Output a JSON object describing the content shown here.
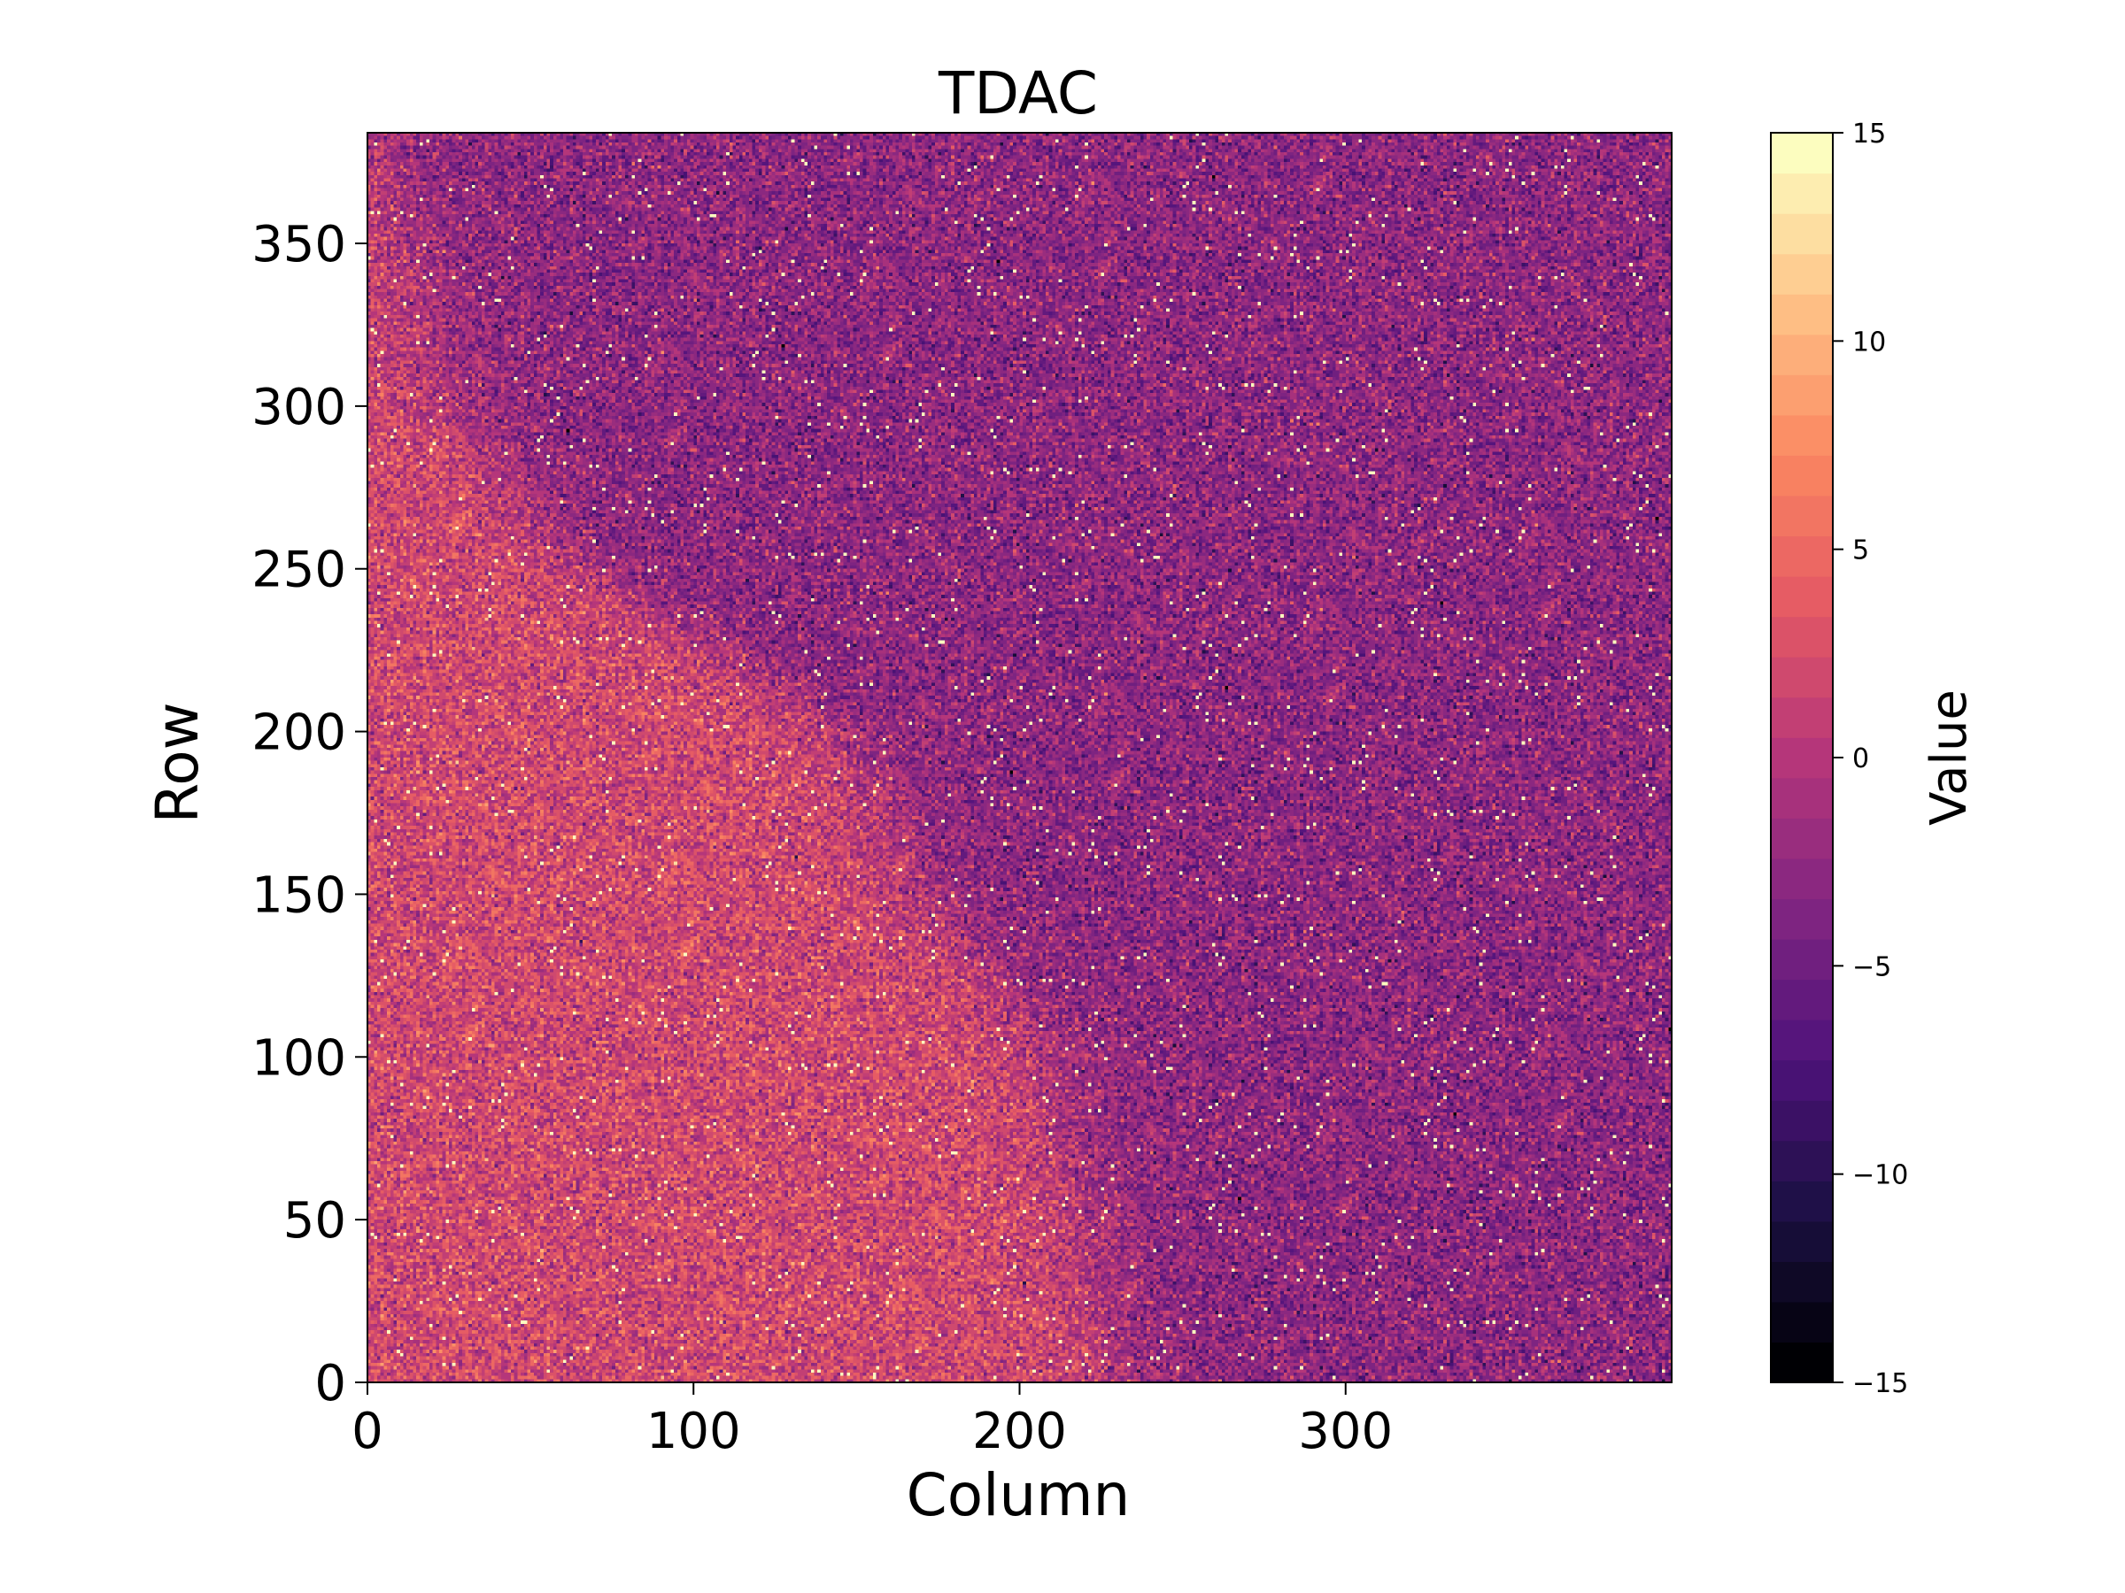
{
  "chart_data": {
    "type": "heatmap",
    "title": "TDAC",
    "xlabel": "Column",
    "ylabel": "Row",
    "xlim": [
      0,
      400
    ],
    "ylim": [
      0,
      384
    ],
    "x_ticks": [
      0,
      100,
      200,
      300
    ],
    "y_ticks": [
      0,
      50,
      100,
      150,
      200,
      250,
      300,
      350
    ],
    "colorbar": {
      "label": "Value",
      "range": [
        -15,
        15
      ],
      "levels": 31,
      "ticks": [
        -15,
        -10,
        -5,
        0,
        5,
        10,
        15
      ],
      "tick_labels": [
        "−15",
        "−10",
        "−5",
        "0",
        "5",
        "10",
        "15"
      ],
      "colormap": "magma",
      "colormap_stops": [
        "#000004",
        "#1c1044",
        "#4f127b",
        "#812581",
        "#b5367a",
        "#e55964",
        "#fb8761",
        "#fec287",
        "#fcfdbf"
      ]
    },
    "regions": {
      "lower_left_mean": 2,
      "upper_right_mean": -3,
      "boundary_columns_by_row": [
        [
          0,
          230
        ],
        [
          100,
          210
        ],
        [
          150,
          170
        ],
        [
          200,
          145
        ],
        [
          250,
          65
        ],
        [
          300,
          25
        ],
        [
          384,
          0
        ]
      ]
    }
  }
}
